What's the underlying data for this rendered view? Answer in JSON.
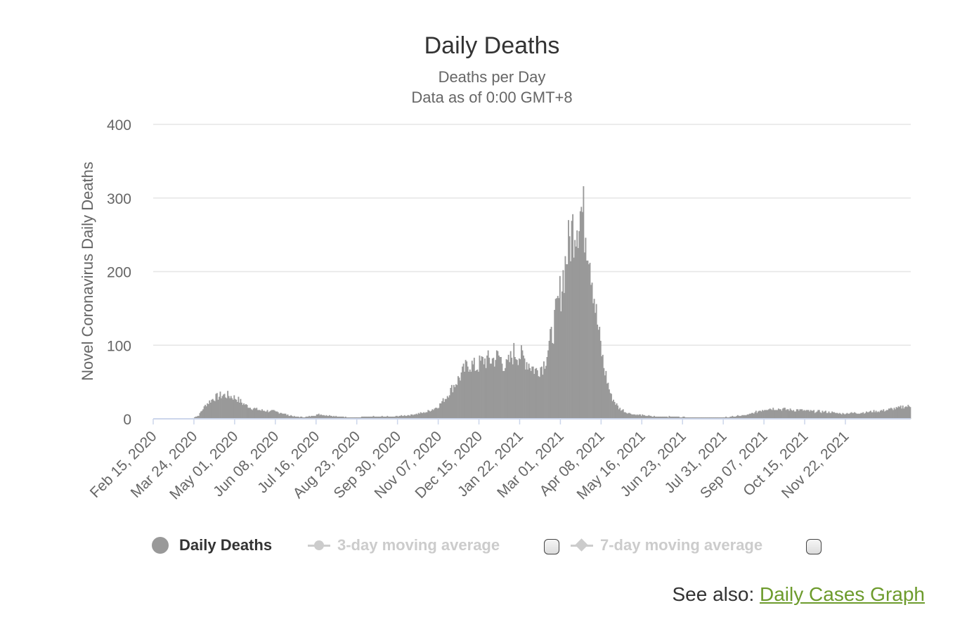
{
  "chart_data": {
    "type": "bar",
    "title": "Daily Deaths",
    "subtitle_lines": [
      "Deaths per Day",
      "Data as of 0:00 GMT+8"
    ],
    "xlabel": "",
    "ylabel": "Novel Coronavirus Daily Deaths",
    "ylim": [
      0,
      400
    ],
    "y_ticks": [
      0,
      100,
      200,
      300,
      400
    ],
    "y_tick_labels": [
      "0",
      "100",
      "200",
      "300",
      "400"
    ],
    "grid": true,
    "x_tick_labels": [
      "Feb 15, 2020",
      "Mar 24, 2020",
      "May 01, 2020",
      "Jun 08, 2020",
      "Jul 16, 2020",
      "Aug 23, 2020",
      "Sep 30, 2020",
      "Nov 07, 2020",
      "Dec 15, 2020",
      "Jan 22, 2021",
      "Mar 01, 2021",
      "Apr 08, 2021",
      "May 16, 2021",
      "Jun 23, 2021",
      "Jul 31, 2021",
      "Sep 07, 2021",
      "Oct 15, 2021",
      "Nov 22, 2021"
    ],
    "start_date": "Feb 15, 2020",
    "days_per_tick": 38,
    "bar_color": "#999999",
    "series": [
      {
        "name": "Daily Deaths",
        "weekly_values": [
          0,
          0,
          0,
          0,
          0,
          0,
          5,
          20,
          28,
          32,
          32,
          28,
          20,
          15,
          12,
          11,
          10,
          8,
          5,
          3,
          2,
          4,
          6,
          5,
          4,
          3,
          2,
          2,
          3,
          3,
          3,
          3,
          3,
          4,
          5,
          7,
          8,
          12,
          18,
          30,
          45,
          60,
          75,
          70,
          80,
          80,
          85,
          70,
          90,
          85,
          75,
          65,
          75,
          110,
          160,
          220,
          265,
          285,
          240,
          140,
          70,
          30,
          15,
          9,
          6,
          5,
          4,
          3,
          3,
          3,
          3,
          2,
          2,
          2,
          2,
          2,
          2,
          3,
          4,
          5,
          8,
          12,
          14,
          14,
          13,
          12,
          12,
          11,
          10,
          10,
          9,
          8,
          7,
          8,
          8,
          9,
          10,
          11,
          13,
          14,
          17
        ]
      }
    ],
    "legend": [
      {
        "label": "Daily Deaths",
        "state": "visible",
        "color": "#999999"
      },
      {
        "label": "3-day moving average",
        "state": "hidden",
        "color": "#cccccc"
      },
      {
        "label": "7-day moving average",
        "state": "hidden",
        "color": "#cccccc"
      }
    ]
  },
  "footer": {
    "see_also_prefix": "See also: ",
    "see_also_link": "Daily Cases Graph"
  }
}
